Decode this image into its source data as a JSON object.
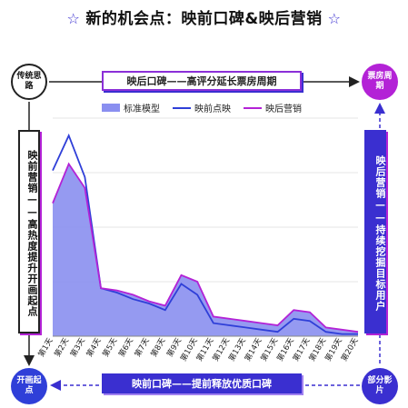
{
  "title": "新的机会点：映前口碑&映后营销",
  "star_glyph": "☆",
  "corner": {
    "top_left": "传统思路",
    "top_right": "票房周期",
    "bottom_left": "开画起点",
    "bottom_right": "部分影片"
  },
  "banner_top": "映后口碑——高评分延长票房周期",
  "banner_bottom": "映前口碑——提前释放优质口碑",
  "side_left": "映前营销——高热度提升开画起点",
  "side_right": "映后营销——持续挖掘目标用户",
  "colors": {
    "area": "#8a8ff0",
    "line_pre": "#2f3fd8",
    "line_post": "#b322d6",
    "accent": "#3a2fd0"
  },
  "chart_data": {
    "type": "area",
    "categories": [
      "第1天",
      "第2天",
      "第3天",
      "第4天",
      "第5天",
      "第6天",
      "第7天",
      "第8天",
      "第9天",
      "第10天",
      "第11天",
      "第12天",
      "第13天",
      "第14天",
      "第15天",
      "第16天",
      "第17天",
      "第18天",
      "第19天",
      "第20天"
    ],
    "series": [
      {
        "name": "标准模型",
        "style": "area",
        "values": [
          61,
          79,
          68,
          22,
          21,
          19,
          16,
          14,
          28,
          25,
          9,
          8,
          7,
          6,
          5,
          12,
          11,
          4,
          3,
          2
        ]
      },
      {
        "name": "映前点映",
        "style": "line",
        "values": [
          76,
          92,
          73,
          22,
          20,
          17,
          15,
          12,
          24,
          19,
          6,
          5,
          4,
          3,
          2,
          8,
          7,
          2,
          1,
          1
        ]
      },
      {
        "name": "映后营销",
        "style": "line",
        "values": [
          61,
          79,
          68,
          22,
          21,
          19,
          16,
          14,
          28,
          25,
          9,
          8,
          7,
          6,
          5,
          12,
          11,
          4,
          3,
          2
        ]
      }
    ],
    "ylim": [
      0,
      100
    ],
    "legend_position": "top",
    "grid": true
  }
}
